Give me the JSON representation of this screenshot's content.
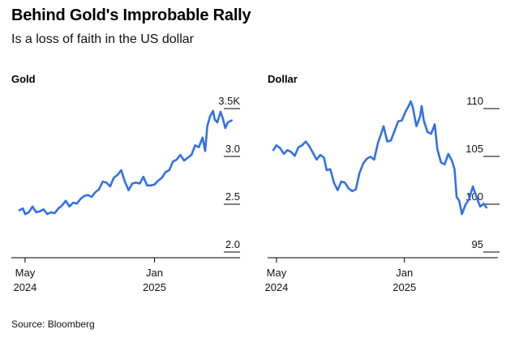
{
  "header": {
    "title": "Behind Gold's Improbable Rally",
    "subtitle": "Is a loss of faith in the US dollar"
  },
  "footer": {
    "source": "Source: Bloomberg"
  },
  "colors": {
    "line": "#3370e8",
    "axis": "#000000",
    "text": "#111111"
  },
  "chart_data": [
    {
      "type": "line",
      "title": "Gold",
      "xlabel": "",
      "ylabel": "",
      "x_ticks": [
        {
          "label_line1": "May",
          "label_line2": "2024",
          "value": "2024-05-01"
        },
        {
          "label_line1": "Jan",
          "label_line2": "2025",
          "value": "2025-01-01"
        }
      ],
      "y_ticks": [
        {
          "value": 3.5,
          "label": "3.5K"
        },
        {
          "value": 3.0,
          "label": "3.0"
        },
        {
          "value": 2.5,
          "label": "2.5"
        },
        {
          "value": 2.0,
          "label": "2.0"
        }
      ],
      "xlim": [
        "2024-04-05",
        "2025-06-12"
      ],
      "ylim": [
        2.0,
        3.5
      ],
      "series": [
        {
          "values": [
            [
              "2024-04-20",
              2.36
            ],
            [
              "2024-04-27",
              2.38
            ],
            [
              "2024-05-01",
              2.32
            ],
            [
              "2024-05-08",
              2.34
            ],
            [
              "2024-05-15",
              2.4
            ],
            [
              "2024-05-22",
              2.34
            ],
            [
              "2024-05-29",
              2.35
            ],
            [
              "2024-06-05",
              2.37
            ],
            [
              "2024-06-12",
              2.32
            ],
            [
              "2024-06-19",
              2.34
            ],
            [
              "2024-06-26",
              2.33
            ],
            [
              "2024-07-03",
              2.38
            ],
            [
              "2024-07-10",
              2.41
            ],
            [
              "2024-07-17",
              2.46
            ],
            [
              "2024-07-24",
              2.4
            ],
            [
              "2024-07-31",
              2.44
            ],
            [
              "2024-08-07",
              2.43
            ],
            [
              "2024-08-14",
              2.48
            ],
            [
              "2024-08-21",
              2.51
            ],
            [
              "2024-08-28",
              2.52
            ],
            [
              "2024-09-04",
              2.5
            ],
            [
              "2024-09-11",
              2.55
            ],
            [
              "2024-09-18",
              2.58
            ],
            [
              "2024-09-25",
              2.66
            ],
            [
              "2024-10-02",
              2.65
            ],
            [
              "2024-10-09",
              2.61
            ],
            [
              "2024-10-16",
              2.7
            ],
            [
              "2024-10-23",
              2.73
            ],
            [
              "2024-10-30",
              2.78
            ],
            [
              "2024-11-06",
              2.66
            ],
            [
              "2024-11-13",
              2.57
            ],
            [
              "2024-11-20",
              2.64
            ],
            [
              "2024-11-27",
              2.65
            ],
            [
              "2024-12-04",
              2.64
            ],
            [
              "2024-12-11",
              2.71
            ],
            [
              "2024-12-18",
              2.62
            ],
            [
              "2024-12-25",
              2.62
            ],
            [
              "2025-01-01",
              2.63
            ],
            [
              "2025-01-08",
              2.67
            ],
            [
              "2025-01-15",
              2.7
            ],
            [
              "2025-01-22",
              2.76
            ],
            [
              "2025-01-29",
              2.78
            ],
            [
              "2025-02-05",
              2.87
            ],
            [
              "2025-02-12",
              2.89
            ],
            [
              "2025-02-19",
              2.94
            ],
            [
              "2025-02-26",
              2.88
            ],
            [
              "2025-03-05",
              2.91
            ],
            [
              "2025-03-12",
              2.94
            ],
            [
              "2025-03-19",
              3.04
            ],
            [
              "2025-03-26",
              3.02
            ],
            [
              "2025-04-02",
              3.12
            ],
            [
              "2025-04-07",
              2.98
            ],
            [
              "2025-04-11",
              3.24
            ],
            [
              "2025-04-16",
              3.34
            ],
            [
              "2025-04-22",
              3.4
            ],
            [
              "2025-04-25",
              3.31
            ],
            [
              "2025-04-30",
              3.28
            ],
            [
              "2025-05-06",
              3.39
            ],
            [
              "2025-05-10",
              3.33
            ],
            [
              "2025-05-15",
              3.22
            ],
            [
              "2025-05-20",
              3.28
            ],
            [
              "2025-05-27",
              3.3
            ]
          ]
        }
      ]
    },
    {
      "type": "line",
      "title": "Dollar",
      "xlabel": "",
      "ylabel": "",
      "x_ticks": [
        {
          "label_line1": "May",
          "label_line2": "2024",
          "value": "2024-05-01"
        },
        {
          "label_line1": "Jan",
          "label_line2": "2025",
          "value": "2025-01-01"
        }
      ],
      "y_ticks": [
        {
          "value": 110,
          "label": "110"
        },
        {
          "value": 105,
          "label": "105"
        },
        {
          "value": 100,
          "label": "100"
        },
        {
          "value": 95,
          "label": "95"
        }
      ],
      "xlim": [
        "2024-04-14",
        "2025-06-29"
      ],
      "ylim": [
        95,
        110
      ],
      "series": [
        {
          "values": [
            [
              "2024-04-25",
              104.9
            ],
            [
              "2024-05-01",
              105.4
            ],
            [
              "2024-05-08",
              105.1
            ],
            [
              "2024-05-15",
              104.5
            ],
            [
              "2024-05-22",
              104.9
            ],
            [
              "2024-05-29",
              104.7
            ],
            [
              "2024-06-05",
              104.3
            ],
            [
              "2024-06-12",
              105.2
            ],
            [
              "2024-06-19",
              105.4
            ],
            [
              "2024-06-26",
              105.8
            ],
            [
              "2024-07-03",
              105.3
            ],
            [
              "2024-07-10",
              104.6
            ],
            [
              "2024-07-17",
              103.9
            ],
            [
              "2024-07-24",
              104.4
            ],
            [
              "2024-07-31",
              104.1
            ],
            [
              "2024-08-05",
              102.8
            ],
            [
              "2024-08-12",
              102.9
            ],
            [
              "2024-08-19",
              101.5
            ],
            [
              "2024-08-26",
              100.7
            ],
            [
              "2024-09-02",
              101.6
            ],
            [
              "2024-09-09",
              101.5
            ],
            [
              "2024-09-16",
              100.9
            ],
            [
              "2024-09-23",
              100.6
            ],
            [
              "2024-09-30",
              100.8
            ],
            [
              "2024-10-07",
              102.5
            ],
            [
              "2024-10-14",
              103.5
            ],
            [
              "2024-10-21",
              104.0
            ],
            [
              "2024-10-28",
              104.2
            ],
            [
              "2024-11-04",
              103.9
            ],
            [
              "2024-11-11",
              105.6
            ],
            [
              "2024-11-18",
              106.7
            ],
            [
              "2024-11-22",
              107.4
            ],
            [
              "2024-11-29",
              105.8
            ],
            [
              "2024-12-06",
              105.9
            ],
            [
              "2024-12-13",
              106.9
            ],
            [
              "2024-12-20",
              107.9
            ],
            [
              "2024-12-27",
              108.0
            ],
            [
              "2025-01-03",
              108.9
            ],
            [
              "2025-01-10",
              109.6
            ],
            [
              "2025-01-13",
              110.0
            ],
            [
              "2025-01-17",
              109.4
            ],
            [
              "2025-01-24",
              107.4
            ],
            [
              "2025-01-31",
              108.4
            ],
            [
              "2025-02-03",
              109.5
            ],
            [
              "2025-02-07",
              108.0
            ],
            [
              "2025-02-14",
              106.8
            ],
            [
              "2025-02-21",
              106.6
            ],
            [
              "2025-02-28",
              107.6
            ],
            [
              "2025-03-05",
              105.0
            ],
            [
              "2025-03-12",
              103.6
            ],
            [
              "2025-03-19",
              103.4
            ],
            [
              "2025-03-26",
              104.5
            ],
            [
              "2025-04-02",
              103.8
            ],
            [
              "2025-04-07",
              102.9
            ],
            [
              "2025-04-11",
              100.0
            ],
            [
              "2025-04-16",
              99.6
            ],
            [
              "2025-04-21",
              98.2
            ],
            [
              "2025-04-28",
              99.2
            ],
            [
              "2025-05-05",
              99.8
            ],
            [
              "2025-05-12",
              101.1
            ],
            [
              "2025-05-19",
              100.0
            ],
            [
              "2025-05-26",
              99.0
            ],
            [
              "2025-06-02",
              99.3
            ],
            [
              "2025-06-07",
              98.9
            ]
          ]
        }
      ]
    }
  ]
}
